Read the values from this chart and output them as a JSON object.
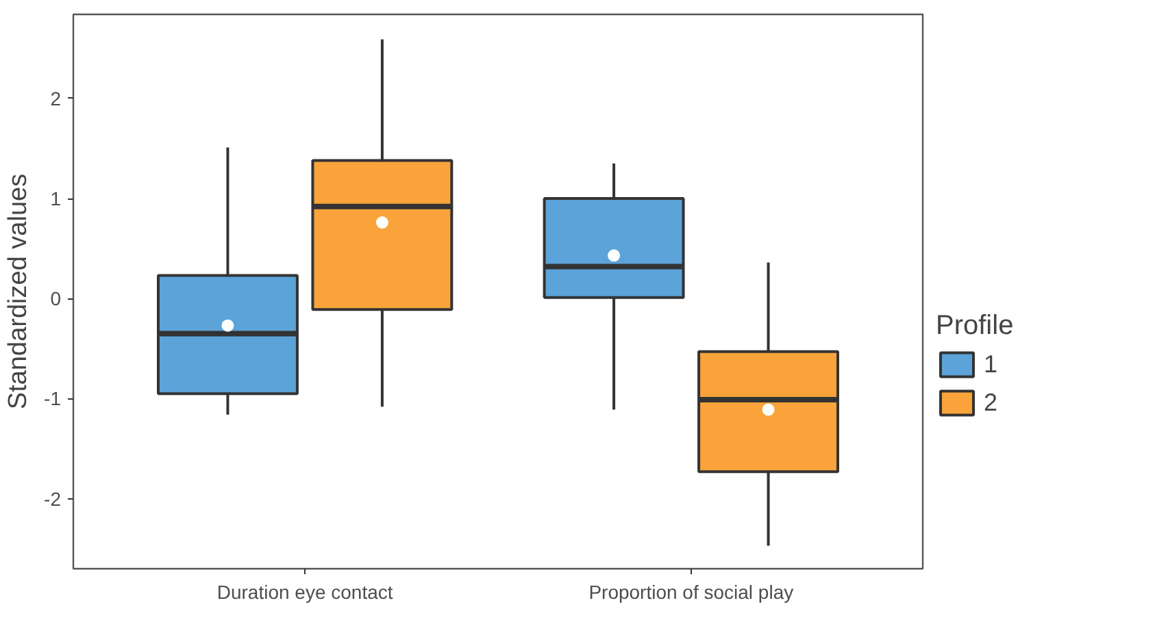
{
  "chart_data": {
    "type": "box",
    "categories": [
      "Duration eye contact",
      "Proportion of social play"
    ],
    "ylabel": "Standardized values",
    "legend_title": "Profile",
    "legend": "right",
    "ylim": [
      -2.7,
      2.84
    ],
    "yticks": [
      -2,
      -1,
      0,
      1,
      2
    ],
    "grid": false,
    "series": [
      {
        "name": "1",
        "color": "#5ba3d9",
        "boxes": [
          {
            "low": -1.16,
            "q1": -0.95,
            "median": -0.35,
            "q3": 0.23,
            "high": 1.51,
            "mean": -0.27
          },
          {
            "low": -1.11,
            "q1": 0.01,
            "median": 0.32,
            "q3": 1.0,
            "high": 1.35,
            "mean": 0.43
          }
        ]
      },
      {
        "name": "2",
        "color": "#f9a33a",
        "boxes": [
          {
            "low": -1.08,
            "q1": -0.11,
            "median": 0.92,
            "q3": 1.38,
            "high": 2.59,
            "mean": 0.76
          },
          {
            "low": -2.47,
            "q1": -1.73,
            "median": -1.01,
            "q3": -0.53,
            "high": 0.36,
            "mean": -1.11
          }
        ]
      }
    ]
  }
}
